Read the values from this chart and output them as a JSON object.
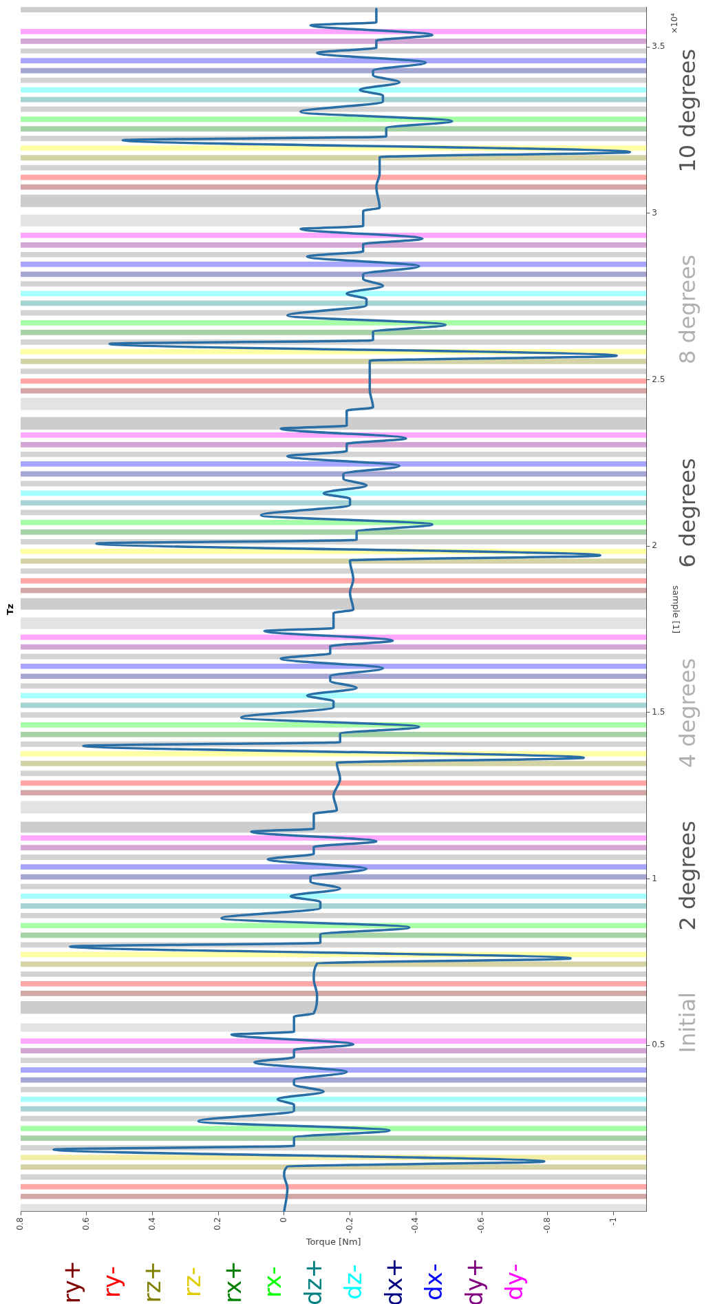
{
  "chart_data": {
    "type": "line",
    "title": "Tz",
    "xlabel": "Torque [Nm]",
    "ylabel": "sample [1]",
    "xlim": [
      0.8,
      -1.1
    ],
    "xticks": [
      0.8,
      0.6,
      0.4,
      0.2,
      0,
      -0.2,
      -0.4,
      -0.6,
      -0.8,
      -1
    ],
    "ylim": [
      0,
      3.62
    ],
    "yticks": [
      0.5,
      1,
      1.5,
      2,
      2.5,
      3,
      3.5
    ],
    "x": [
      0,
      -0.01,
      0,
      -0.01,
      -0.79,
      0.7,
      -0.03,
      -0.03,
      -0.32,
      0.26,
      -0.03,
      -0.03,
      0.02,
      -0.12,
      -0.03,
      -0.03,
      -0.19,
      0.09,
      -0.03,
      -0.03,
      -0.21,
      0.16,
      -0.03,
      -0.03,
      -0.09,
      -0.1,
      -0.09,
      -0.1,
      -0.87,
      0.65,
      -0.11,
      -0.11,
      -0.38,
      0.19,
      -0.11,
      -0.11,
      -0.02,
      -0.17,
      -0.08,
      -0.08,
      -0.25,
      0.05,
      -0.09,
      -0.09,
      -0.28,
      0.1,
      -0.09,
      -0.09,
      -0.16,
      -0.15,
      -0.17,
      -0.16,
      -0.91,
      0.61,
      -0.17,
      -0.17,
      -0.41,
      0.13,
      -0.15,
      -0.15,
      -0.07,
      -0.22,
      -0.14,
      -0.14,
      -0.3,
      0.01,
      -0.14,
      -0.14,
      -0.33,
      0.06,
      -0.15,
      -0.15,
      -0.21,
      -0.2,
      -0.21,
      -0.2,
      -0.96,
      0.57,
      -0.22,
      -0.22,
      -0.45,
      0.07,
      -0.2,
      -0.2,
      -0.12,
      -0.25,
      -0.18,
      -0.18,
      -0.35,
      -0.01,
      -0.19,
      -0.19,
      -0.37,
      0.01,
      -0.19,
      -0.19,
      -0.27,
      -0.26,
      -0.26,
      -0.26,
      -1.01,
      0.53,
      -0.27,
      -0.27,
      -0.49,
      -0.01,
      -0.25,
      -0.25,
      -0.19,
      -0.3,
      -0.24,
      -0.24,
      -0.41,
      -0.07,
      -0.24,
      -0.24,
      -0.42,
      -0.05,
      -0.24,
      -0.24,
      -0.29,
      -0.28,
      -0.29,
      -0.29,
      -1.05,
      0.49,
      -0.31,
      -0.31,
      -0.51,
      -0.05,
      -0.3,
      -0.3,
      -0.23,
      -0.35,
      -0.27,
      -0.27,
      -0.43,
      -0.1,
      -0.28,
      -0.28,
      -0.45,
      -0.08,
      -0.28,
      -0.28
    ],
    "series": [
      {
        "color": "#2a6ea6",
        "values": [
          0,
          0.07,
          0.11,
          0.136,
          0.151,
          0.187,
          0.198,
          0.223,
          0.244,
          0.272,
          0.303,
          0.321,
          0.338,
          0.361,
          0.382,
          0.396,
          0.42,
          0.449,
          0.465,
          0.486,
          0.503,
          0.532,
          0.541,
          0.586,
          0.596,
          0.65,
          0.7,
          0.746,
          0.761,
          0.797,
          0.808,
          0.833,
          0.854,
          0.882,
          0.913,
          0.931,
          0.948,
          0.971,
          0.992,
          1.006,
          1.03,
          1.059,
          1.075,
          1.096,
          1.113,
          1.142,
          1.151,
          1.196,
          1.206,
          1.25,
          1.3,
          1.349,
          1.364,
          1.4,
          1.411,
          1.436,
          1.457,
          1.485,
          1.516,
          1.534,
          1.551,
          1.574,
          1.595,
          1.609,
          1.633,
          1.662,
          1.678,
          1.699,
          1.716,
          1.745,
          1.754,
          1.799,
          1.809,
          1.86,
          1.9,
          1.957,
          1.972,
          2.008,
          2.019,
          2.044,
          2.065,
          2.093,
          2.124,
          2.142,
          2.159,
          2.182,
          2.203,
          2.217,
          2.241,
          2.27,
          2.286,
          2.307,
          2.324,
          2.353,
          2.362,
          2.407,
          2.417,
          2.47,
          2.51,
          2.557,
          2.572,
          2.608,
          2.619,
          2.644,
          2.665,
          2.693,
          2.724,
          2.742,
          2.759,
          2.782,
          2.803,
          2.817,
          2.841,
          2.87,
          2.886,
          2.907,
          2.924,
          2.953,
          2.962,
          3.007,
          3.017,
          3.08,
          3.12,
          3.169,
          3.184,
          3.22,
          3.231,
          3.256,
          3.277,
          3.305,
          3.336,
          3.354,
          3.371,
          3.394,
          3.415,
          3.429,
          3.453,
          3.482,
          3.498,
          3.519,
          3.536,
          3.565,
          3.574,
          3.614
        ]
      }
    ],
    "bands": [
      {
        "axis": "y",
        "from": 0,
        "to": 0.023,
        "color": "#b0b0b0"
      },
      {
        "axis": "y",
        "from": 0.038,
        "to": 0.054,
        "color": "#800000",
        "label": "ry+"
      },
      {
        "axis": "y",
        "from": 0.067,
        "to": 0.083,
        "color": "#ff0000",
        "label": "ry-"
      },
      {
        "axis": "y",
        "from": 0.096,
        "to": 0.112,
        "color": "#808080"
      },
      {
        "axis": "y",
        "from": 0.126,
        "to": 0.142,
        "color": "#808000",
        "label": "rz+"
      },
      {
        "axis": "y",
        "from": 0.155,
        "to": 0.171,
        "color": "#e0cc00",
        "label": "rz-"
      },
      {
        "axis": "y",
        "from": 0.184,
        "to": 0.2,
        "color": "#808080"
      },
      {
        "axis": "y",
        "from": 0.213,
        "to": 0.229,
        "color": "#008000",
        "label": "rx+"
      },
      {
        "axis": "y",
        "from": 0.242,
        "to": 0.258,
        "color": "#00ff00",
        "label": "rx-"
      },
      {
        "axis": "y",
        "from": 0.272,
        "to": 0.288,
        "color": "#808080"
      },
      {
        "axis": "y",
        "from": 0.301,
        "to": 0.317,
        "color": "#008080",
        "label": "dz+"
      },
      {
        "axis": "y",
        "from": 0.33,
        "to": 0.346,
        "color": "#00ffff",
        "label": "dz-"
      },
      {
        "axis": "y",
        "from": 0.359,
        "to": 0.375,
        "color": "#808080"
      },
      {
        "axis": "y",
        "from": 0.388,
        "to": 0.404,
        "color": "#000080",
        "label": "dx+"
      },
      {
        "axis": "y",
        "from": 0.418,
        "to": 0.434,
        "color": "#0000ff",
        "label": "dx-"
      },
      {
        "axis": "y",
        "from": 0.447,
        "to": 0.463,
        "color": "#808080"
      },
      {
        "axis": "y",
        "from": 0.476,
        "to": 0.492,
        "color": "#800080",
        "label": "dy+"
      },
      {
        "axis": "y",
        "from": 0.505,
        "to": 0.521,
        "color": "#ff00ff",
        "label": "dy-"
      },
      {
        "axis": "y",
        "from": 0.541,
        "to": 0.566,
        "color": "#b0b0b0"
      },
      {
        "axis": "y",
        "from": 0.595,
        "to": 0.633,
        "color": "#707070"
      },
      {
        "axis": "y",
        "from": 0.648,
        "to": 0.664,
        "color": "#800000"
      },
      {
        "axis": "y",
        "from": 0.677,
        "to": 0.693,
        "color": "#ff0000"
      },
      {
        "axis": "y",
        "from": 0.706,
        "to": 0.722,
        "color": "#808080"
      },
      {
        "axis": "y",
        "from": 0.736,
        "to": 0.752,
        "color": "#808000"
      },
      {
        "axis": "y",
        "from": 0.765,
        "to": 0.781,
        "color": "#ffff00"
      },
      {
        "axis": "y",
        "from": 0.794,
        "to": 0.81,
        "color": "#808080"
      },
      {
        "axis": "y",
        "from": 0.823,
        "to": 0.839,
        "color": "#008000"
      },
      {
        "axis": "y",
        "from": 0.852,
        "to": 0.868,
        "color": "#00ff00"
      },
      {
        "axis": "y",
        "from": 0.882,
        "to": 0.898,
        "color": "#808080"
      },
      {
        "axis": "y",
        "from": 0.911,
        "to": 0.927,
        "color": "#008080"
      },
      {
        "axis": "y",
        "from": 0.94,
        "to": 0.956,
        "color": "#00ffff"
      },
      {
        "axis": "y",
        "from": 0.969,
        "to": 0.985,
        "color": "#808080"
      },
      {
        "axis": "y",
        "from": 0.998,
        "to": 1.014,
        "color": "#000080"
      },
      {
        "axis": "y",
        "from": 1.028,
        "to": 1.044,
        "color": "#0000ff"
      },
      {
        "axis": "y",
        "from": 1.057,
        "to": 1.073,
        "color": "#808080"
      },
      {
        "axis": "y",
        "from": 1.086,
        "to": 1.102,
        "color": "#800080"
      },
      {
        "axis": "y",
        "from": 1.115,
        "to": 1.131,
        "color": "#ff00ff"
      },
      {
        "axis": "y",
        "from": 1.139,
        "to": 1.172,
        "color": "#707070"
      },
      {
        "axis": "y",
        "from": 1.197,
        "to": 1.234,
        "color": "#b0b0b0"
      },
      {
        "axis": "y",
        "from": 1.251,
        "to": 1.267,
        "color": "#800000"
      },
      {
        "axis": "y",
        "from": 1.28,
        "to": 1.296,
        "color": "#ff0000"
      },
      {
        "axis": "y",
        "from": 1.309,
        "to": 1.325,
        "color": "#808080"
      },
      {
        "axis": "y",
        "from": 1.339,
        "to": 1.355,
        "color": "#808000"
      },
      {
        "axis": "y",
        "from": 1.368,
        "to": 1.384,
        "color": "#ffff00"
      },
      {
        "axis": "y",
        "from": 1.397,
        "to": 1.413,
        "color": "#808080"
      },
      {
        "axis": "y",
        "from": 1.426,
        "to": 1.442,
        "color": "#008000"
      },
      {
        "axis": "y",
        "from": 1.455,
        "to": 1.471,
        "color": "#00ff00"
      },
      {
        "axis": "y",
        "from": 1.485,
        "to": 1.501,
        "color": "#808080"
      },
      {
        "axis": "y",
        "from": 1.514,
        "to": 1.53,
        "color": "#008080"
      },
      {
        "axis": "y",
        "from": 1.543,
        "to": 1.559,
        "color": "#00ffff"
      },
      {
        "axis": "y",
        "from": 1.572,
        "to": 1.588,
        "color": "#808080"
      },
      {
        "axis": "y",
        "from": 1.601,
        "to": 1.617,
        "color": "#000080"
      },
      {
        "axis": "y",
        "from": 1.631,
        "to": 1.647,
        "color": "#0000ff"
      },
      {
        "axis": "y",
        "from": 1.66,
        "to": 1.676,
        "color": "#808080"
      },
      {
        "axis": "y",
        "from": 1.689,
        "to": 1.705,
        "color": "#800080"
      },
      {
        "axis": "y",
        "from": 1.718,
        "to": 1.734,
        "color": "#ff00ff"
      },
      {
        "axis": "y",
        "from": 1.751,
        "to": 1.786,
        "color": "#b0b0b0"
      },
      {
        "axis": "y",
        "from": 1.809,
        "to": 1.844,
        "color": "#707070"
      },
      {
        "axis": "y",
        "from": 1.859,
        "to": 1.875,
        "color": "#800000"
      },
      {
        "axis": "y",
        "from": 1.888,
        "to": 1.904,
        "color": "#ff0000"
      },
      {
        "axis": "y",
        "from": 1.917,
        "to": 1.933,
        "color": "#808080"
      },
      {
        "axis": "y",
        "from": 1.947,
        "to": 1.963,
        "color": "#808000"
      },
      {
        "axis": "y",
        "from": 1.976,
        "to": 1.992,
        "color": "#ffff00"
      },
      {
        "axis": "y",
        "from": 2.005,
        "to": 2.021,
        "color": "#808080"
      },
      {
        "axis": "y",
        "from": 2.034,
        "to": 2.05,
        "color": "#008000"
      },
      {
        "axis": "y",
        "from": 2.063,
        "to": 2.079,
        "color": "#00ff00"
      },
      {
        "axis": "y",
        "from": 2.093,
        "to": 2.109,
        "color": "#808080"
      },
      {
        "axis": "y",
        "from": 2.122,
        "to": 2.138,
        "color": "#008080"
      },
      {
        "axis": "y",
        "from": 2.151,
        "to": 2.167,
        "color": "#00ffff"
      },
      {
        "axis": "y",
        "from": 2.18,
        "to": 2.196,
        "color": "#808080"
      },
      {
        "axis": "y",
        "from": 2.209,
        "to": 2.225,
        "color": "#000080"
      },
      {
        "axis": "y",
        "from": 2.239,
        "to": 2.255,
        "color": "#0000ff"
      },
      {
        "axis": "y",
        "from": 2.268,
        "to": 2.284,
        "color": "#808080"
      },
      {
        "axis": "y",
        "from": 2.297,
        "to": 2.313,
        "color": "#800080"
      },
      {
        "axis": "y",
        "from": 2.326,
        "to": 2.342,
        "color": "#ff00ff"
      },
      {
        "axis": "y",
        "from": 2.35,
        "to": 2.388,
        "color": "#707070"
      },
      {
        "axis": "y",
        "from": 2.409,
        "to": 2.446,
        "color": "#b0b0b0"
      },
      {
        "axis": "y",
        "from": 2.459,
        "to": 2.475,
        "color": "#800000"
      },
      {
        "axis": "y",
        "from": 2.488,
        "to": 2.504,
        "color": "#ff0000"
      },
      {
        "axis": "y",
        "from": 2.517,
        "to": 2.533,
        "color": "#808080"
      },
      {
        "axis": "y",
        "from": 2.547,
        "to": 2.563,
        "color": "#808000"
      },
      {
        "axis": "y",
        "from": 2.576,
        "to": 2.592,
        "color": "#ffff00"
      },
      {
        "axis": "y",
        "from": 2.605,
        "to": 2.621,
        "color": "#808080"
      },
      {
        "axis": "y",
        "from": 2.634,
        "to": 2.65,
        "color": "#008000"
      },
      {
        "axis": "y",
        "from": 2.663,
        "to": 2.679,
        "color": "#00ff00"
      },
      {
        "axis": "y",
        "from": 2.693,
        "to": 2.709,
        "color": "#808080"
      },
      {
        "axis": "y",
        "from": 2.722,
        "to": 2.738,
        "color": "#008080"
      },
      {
        "axis": "y",
        "from": 2.751,
        "to": 2.767,
        "color": "#00ffff"
      },
      {
        "axis": "y",
        "from": 2.78,
        "to": 2.796,
        "color": "#808080"
      },
      {
        "axis": "y",
        "from": 2.809,
        "to": 2.825,
        "color": "#000080"
      },
      {
        "axis": "y",
        "from": 2.839,
        "to": 2.855,
        "color": "#0000ff"
      },
      {
        "axis": "y",
        "from": 2.868,
        "to": 2.884,
        "color": "#808080"
      },
      {
        "axis": "y",
        "from": 2.897,
        "to": 2.913,
        "color": "#800080"
      },
      {
        "axis": "y",
        "from": 2.926,
        "to": 2.942,
        "color": "#ff00ff"
      },
      {
        "axis": "y",
        "from": 2.961,
        "to": 2.996,
        "color": "#b0b0b0"
      },
      {
        "axis": "y",
        "from": 3.019,
        "to": 3.056,
        "color": "#707070"
      },
      {
        "axis": "y",
        "from": 3.071,
        "to": 3.087,
        "color": "#800000"
      },
      {
        "axis": "y",
        "from": 3.1,
        "to": 3.116,
        "color": "#ff0000"
      },
      {
        "axis": "y",
        "from": 3.129,
        "to": 3.145,
        "color": "#808080"
      },
      {
        "axis": "y",
        "from": 3.159,
        "to": 3.175,
        "color": "#808000"
      },
      {
        "axis": "y",
        "from": 3.188,
        "to": 3.204,
        "color": "#ffff00"
      },
      {
        "axis": "y",
        "from": 3.217,
        "to": 3.233,
        "color": "#808080"
      },
      {
        "axis": "y",
        "from": 3.246,
        "to": 3.262,
        "color": "#008000"
      },
      {
        "axis": "y",
        "from": 3.275,
        "to": 3.291,
        "color": "#00ff00"
      },
      {
        "axis": "y",
        "from": 3.305,
        "to": 3.321,
        "color": "#808080"
      },
      {
        "axis": "y",
        "from": 3.334,
        "to": 3.35,
        "color": "#008080"
      },
      {
        "axis": "y",
        "from": 3.363,
        "to": 3.379,
        "color": "#00ffff"
      },
      {
        "axis": "y",
        "from": 3.392,
        "to": 3.408,
        "color": "#808080"
      },
      {
        "axis": "y",
        "from": 3.421,
        "to": 3.437,
        "color": "#000080"
      },
      {
        "axis": "y",
        "from": 3.451,
        "to": 3.467,
        "color": "#0000ff"
      },
      {
        "axis": "y",
        "from": 3.48,
        "to": 3.496,
        "color": "#808080"
      },
      {
        "axis": "y",
        "from": 3.509,
        "to": 3.525,
        "color": "#800080"
      },
      {
        "axis": "y",
        "from": 3.538,
        "to": 3.554,
        "color": "#ff00ff"
      },
      {
        "axis": "y",
        "from": 3.604,
        "to": 3.62,
        "color": "#707070"
      }
    ],
    "annotations": [
      "Initial",
      "2 degrees",
      "4 degrees",
      "6 degrees",
      "8 degrees",
      "10 degrees",
      "×10⁴"
    ]
  }
}
